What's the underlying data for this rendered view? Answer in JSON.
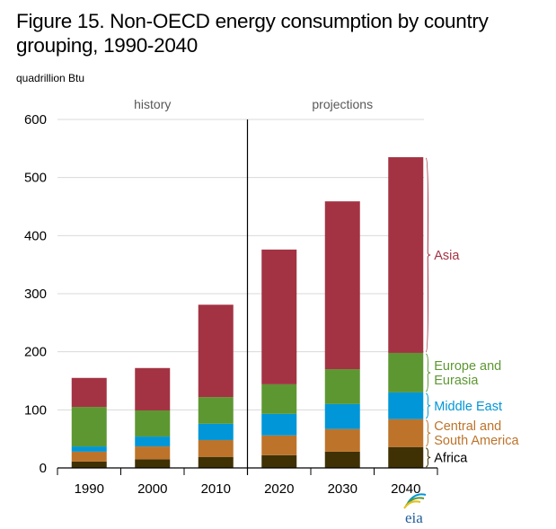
{
  "title": "Figure 15. Non-OECD energy consumption by country grouping, 1990-2040",
  "units": "quadrillion  Btu",
  "logo": "eia",
  "chart_data": {
    "type": "bar",
    "stacked": true,
    "title": "Figure 15. Non-OECD energy consumption by country grouping, 1990-2040",
    "xlabel": "",
    "ylabel": "quadrillion Btu",
    "ylim": [
      0,
      600
    ],
    "yticks": [
      0,
      100,
      200,
      300,
      400,
      500,
      600
    ],
    "grid": true,
    "categories": [
      "1990",
      "2000",
      "2010",
      "2020",
      "2030",
      "2040"
    ],
    "regions": [
      {
        "label": "history",
        "categories": [
          "1990",
          "2000",
          "2010"
        ]
      },
      {
        "label": "projections",
        "categories": [
          "2020",
          "2030",
          "2040"
        ]
      }
    ],
    "legend_placement": "right",
    "series": [
      {
        "name": "Africa",
        "color": "#3F3103",
        "label_color": "#000000",
        "values": [
          11,
          15,
          19,
          22,
          28,
          36
        ]
      },
      {
        "name": "Central and South America",
        "label_lines": [
          "Central and",
          "South America"
        ],
        "color": "#BD732A",
        "label_color": "#BD732A",
        "values": [
          17,
          22,
          29,
          34,
          39,
          48
        ]
      },
      {
        "name": "Middle East",
        "color": "#0096D7",
        "label_color": "#0096D7",
        "values": [
          9,
          17,
          28,
          37,
          43,
          46
        ]
      },
      {
        "name": "Europe and Eurasia",
        "label_lines": [
          "Europe and",
          "Eurasia"
        ],
        "color": "#5D9732",
        "label_color": "#5D9732",
        "values": [
          68,
          45,
          46,
          51,
          60,
          68
        ]
      },
      {
        "name": "Asia",
        "color": "#A33343",
        "label_color": "#A33343",
        "values": [
          50,
          73,
          159,
          232,
          289,
          337
        ]
      }
    ]
  }
}
